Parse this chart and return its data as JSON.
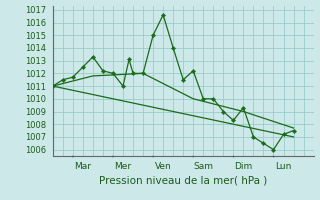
{
  "xlabel": "Pression niveau de la mer( hPa )",
  "bg_color": "#cce8e8",
  "grid_color": "#99cccc",
  "line_color": "#1a6b1a",
  "marker_color": "#1a6b1a",
  "ylim": [
    1005.5,
    1017.3
  ],
  "yticks": [
    1006,
    1007,
    1008,
    1009,
    1010,
    1011,
    1012,
    1013,
    1014,
    1015,
    1016,
    1017
  ],
  "day_labels": [
    "Mar",
    "Mer",
    "Ven",
    "Sam",
    "Dim",
    "Lun"
  ],
  "day_positions": [
    1.5,
    3.5,
    5.5,
    7.5,
    9.5,
    11.5
  ],
  "day_sep_positions": [
    1.0,
    3.0,
    5.0,
    7.0,
    9.0,
    11.0
  ],
  "xlim": [
    0,
    13
  ],
  "series0_x": [
    0,
    0.5,
    1.0,
    1.5,
    2.0,
    2.5,
    3.0,
    3.5,
    3.8,
    4.0,
    4.5,
    5.0,
    5.5,
    6.0,
    6.5,
    7.0,
    7.5,
    8.0,
    8.5,
    9.0,
    9.5,
    10.0,
    10.5,
    11.0,
    11.5,
    12.0
  ],
  "series0_y": [
    1011.0,
    1011.5,
    1011.7,
    1012.5,
    1013.3,
    1012.2,
    1012.0,
    1011.0,
    1013.1,
    1012.0,
    1012.0,
    1015.0,
    1016.6,
    1014.0,
    1011.5,
    1012.2,
    1010.0,
    1010.0,
    1009.0,
    1008.3,
    1009.3,
    1007.0,
    1006.5,
    1006.0,
    1007.2,
    1007.5
  ],
  "series1_x": [
    0,
    2.0,
    4.5,
    7.0,
    9.5,
    12.0
  ],
  "series1_y": [
    1011.0,
    1011.8,
    1012.0,
    1010.0,
    1009.0,
    1007.7
  ],
  "series2_x": [
    0,
    12.0
  ],
  "series2_y": [
    1011.0,
    1007.0
  ]
}
